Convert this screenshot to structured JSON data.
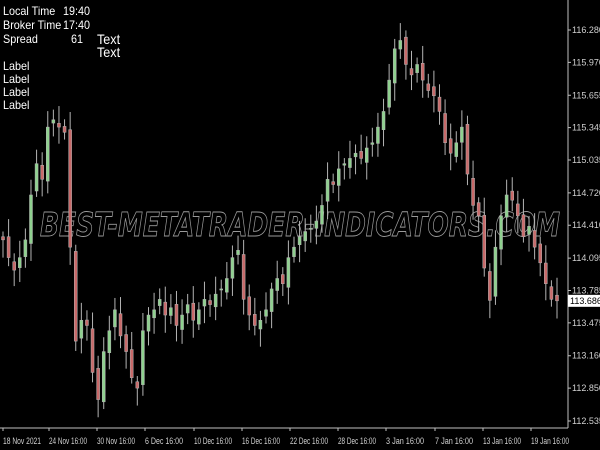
{
  "info_panel": {
    "local_time_label": "Local Time",
    "local_time_value": "19:40",
    "broker_time_label": "Broker Time",
    "broker_time_value": "17:40",
    "spread_label": "Spread",
    "spread_value": "61",
    "text_1": "Text",
    "text_2": "Text",
    "labels": [
      "Label",
      "Label",
      "Label",
      "Label"
    ]
  },
  "watermark": "BEST-METATRADER-INDICATORS.COM",
  "colors": {
    "background": "#000000",
    "wick": "#b4b4b4",
    "bull_body": "#8fd18f",
    "bear_body": "#c86a6a",
    "axis": "#c0c0c0",
    "current_price_bg": "#ffffff"
  },
  "chart_data": {
    "type": "candlestick",
    "current_price": "113.686",
    "y_ticks": [
      "116.280",
      "115.970",
      "115.655",
      "115.345",
      "115.035",
      "114.720",
      "114.410",
      "114.095",
      "113.785",
      "113.475",
      "113.160",
      "112.850",
      "112.535"
    ],
    "x_ticks": [
      "18 Nov 2021",
      "24 Nov 16:00",
      "30 Nov 16:00",
      "6 Dec 16:00",
      "10 Dec 16:00",
      "16 Dec 16:00",
      "22 Dec 16:00",
      "28 Dec 16:00",
      "3 Jan 16:00",
      "7 Jan 16:00",
      "13 Jan 16:00",
      "19 Jan 16:00"
    ],
    "ylim": [
      112.4,
      116.4
    ],
    "grid": false,
    "closes": [
      114.27,
      114.1,
      113.98,
      114.1,
      114.27,
      114.7,
      115.0,
      114.85,
      115.35,
      115.42,
      115.35,
      115.3,
      114.2,
      113.3,
      113.5,
      113.45,
      113.0,
      112.74,
      113.2,
      113.4,
      113.6,
      113.35,
      113.2,
      112.95,
      112.85,
      113.4,
      113.55,
      113.6,
      113.7,
      113.55,
      113.62,
      113.45,
      113.55,
      113.65,
      113.5,
      113.6,
      113.7,
      113.65,
      113.75,
      113.8,
      113.9,
      114.1,
      114.17,
      113.7,
      113.55,
      113.45,
      113.5,
      113.6,
      113.8,
      113.9,
      113.85,
      114.1,
      114.2,
      114.3,
      114.35,
      114.38,
      114.45,
      114.6,
      114.85,
      114.8,
      114.95,
      115.0,
      115.05,
      115.1,
      115.05,
      115.15,
      115.2,
      115.35,
      115.5,
      115.8,
      116.1,
      116.18,
      115.95,
      115.85,
      115.95,
      115.8,
      115.7,
      115.65,
      115.5,
      115.2,
      115.1,
      115.2,
      115.35,
      114.9,
      114.6,
      114.5,
      114.0,
      113.69,
      114.2,
      114.5,
      114.7,
      114.65,
      114.5,
      114.3,
      114.4,
      114.2,
      114.05,
      113.85,
      113.7,
      113.686
    ]
  }
}
